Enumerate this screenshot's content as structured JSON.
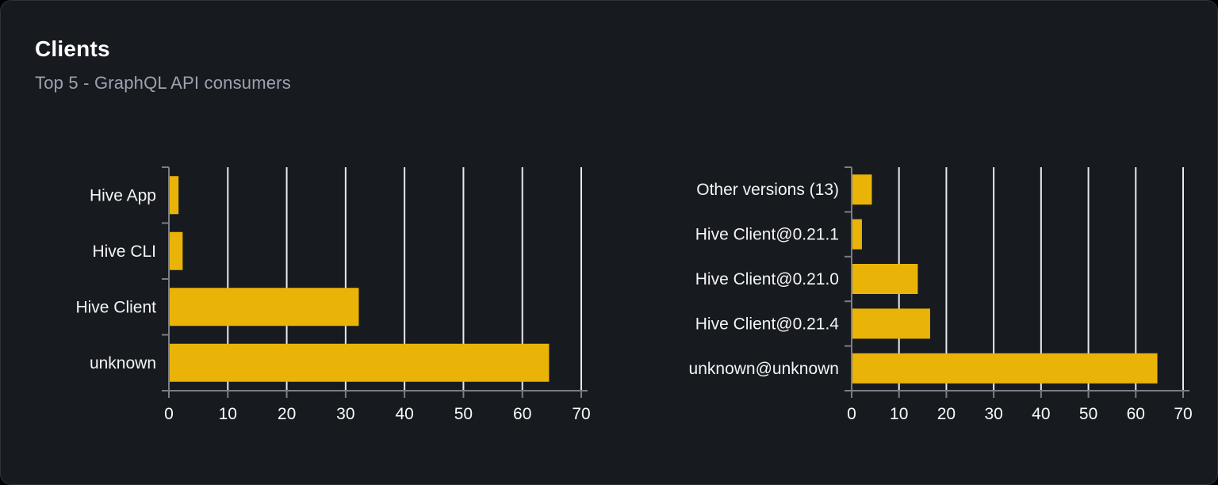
{
  "card": {
    "title": "Clients",
    "subtitle": "Top 5 - GraphQL API consumers"
  },
  "colors": {
    "page_bg": "#000000",
    "card_bg": "#171a1f",
    "card_border": "#2e323a",
    "bar": "#eab308",
    "grid_line": "#e8eaee",
    "axis_line": "#7a7e87",
    "category_label": "#f3f4f6",
    "tick_label": "#f9fafb",
    "title": "#ffffff",
    "subtitle": "#9ca3af"
  },
  "chart_data": [
    {
      "type": "bar",
      "orientation": "horizontal",
      "name": "top-clients",
      "categories": [
        "Hive App",
        "Hive CLI",
        "Hive Client",
        "unknown"
      ],
      "values": [
        1.5,
        2.2,
        32.1,
        64.4
      ],
      "xlim": [
        0,
        70
      ],
      "xticks": [
        0,
        10,
        20,
        30,
        40,
        50,
        60,
        70
      ],
      "grid": true,
      "legend": false,
      "title": "",
      "xlabel": "",
      "ylabel": ""
    },
    {
      "type": "bar",
      "orientation": "horizontal",
      "name": "top-client-versions",
      "categories": [
        "Other versions (13)",
        "Hive Client@0.21.1",
        "Hive Client@0.21.0",
        "Hive Client@0.21.4",
        "unknown@unknown"
      ],
      "values": [
        4.1,
        2.0,
        13.8,
        16.4,
        64.4
      ],
      "xlim": [
        0,
        70
      ],
      "xticks": [
        0,
        10,
        20,
        30,
        40,
        50,
        60,
        70
      ],
      "grid": true,
      "legend": false,
      "title": "",
      "xlabel": "",
      "ylabel": ""
    }
  ]
}
